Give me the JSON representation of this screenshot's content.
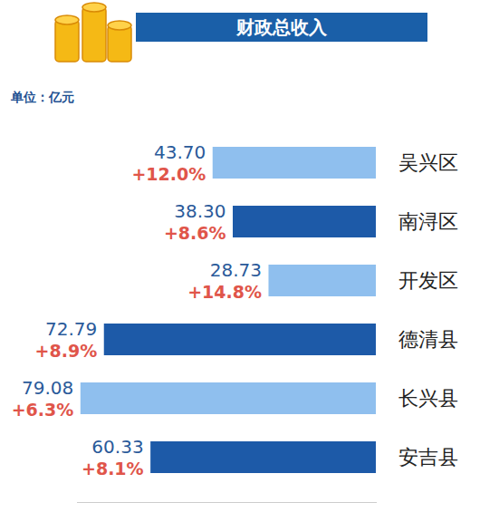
{
  "chart_data": {
    "type": "bar",
    "title": "财政总收入",
    "subtitle": "单位：亿元",
    "orientation": "horizontal",
    "categories": [
      "吴兴区",
      "南浔区",
      "开发区",
      "德清县",
      "长兴县",
      "安吉县"
    ],
    "values": [
      43.7,
      38.3,
      28.73,
      72.79,
      79.08,
      60.33
    ],
    "value_labels": [
      "43.70",
      "38.30",
      "28.73",
      "72.79",
      "79.08",
      "60.33"
    ],
    "growth": [
      12.0,
      8.6,
      14.8,
      8.9,
      6.3,
      8.1
    ],
    "growth_labels": [
      "+12.0%",
      "+8.6%",
      "+14.8%",
      "+8.9%",
      "+6.3%",
      "+8.1%"
    ],
    "colors": [
      "#8fbfee",
      "#1d5aa8",
      "#8fbfee",
      "#1d5aa8",
      "#8fbfee",
      "#1d5aa8"
    ],
    "xlim": [
      0,
      80
    ],
    "data_labels": true,
    "tick_labels": "y",
    "grid": false
  }
}
